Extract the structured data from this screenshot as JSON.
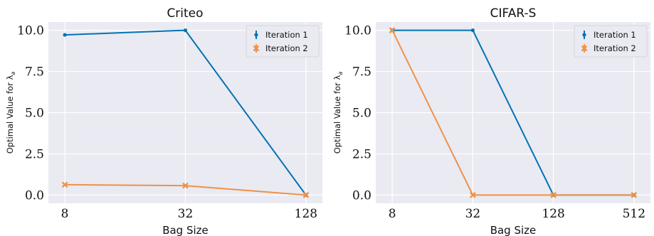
{
  "chart_data": [
    {
      "type": "line",
      "title": "Criteo",
      "xlabel": "Bag Size",
      "ylabel": "Optimal Value for λ",
      "ylabel_subscript": "a",
      "x_scale": "log2",
      "categories": [
        "8",
        "32",
        "128"
      ],
      "x": [
        8,
        32,
        128
      ],
      "ylim": [
        -0.5,
        10.5
      ],
      "yticks": [
        "0.0",
        "2.5",
        "5.0",
        "7.5",
        "10.0"
      ],
      "grid": true,
      "legend_position": "top-right",
      "series": [
        {
          "name": "Iteration 1",
          "color": "#0173b2",
          "marker": "dot",
          "values": [
            9.72,
            10.0,
            0.0
          ]
        },
        {
          "name": "Iteration 2",
          "color": "#ee9248",
          "marker": "x",
          "values": [
            0.63,
            0.57,
            0.0
          ]
        }
      ]
    },
    {
      "type": "line",
      "title": "CIFAR-S",
      "xlabel": "Bag Size",
      "ylabel": "Optimal Value for λ",
      "ylabel_subscript": "a",
      "x_scale": "log2",
      "categories": [
        "8",
        "32",
        "128",
        "512"
      ],
      "x": [
        8,
        32,
        128,
        512
      ],
      "ylim": [
        -0.5,
        10.5
      ],
      "yticks": [
        "0.0",
        "2.5",
        "5.0",
        "7.5",
        "10.0"
      ],
      "grid": true,
      "legend_position": "top-right",
      "series": [
        {
          "name": "Iteration 1",
          "color": "#0173b2",
          "marker": "dot",
          "values": [
            10.0,
            10.0,
            0.0,
            0.0
          ]
        },
        {
          "name": "Iteration 2",
          "color": "#ee9248",
          "marker": "x",
          "values": [
            10.0,
            0.0,
            0.0,
            0.0
          ]
        }
      ]
    }
  ]
}
